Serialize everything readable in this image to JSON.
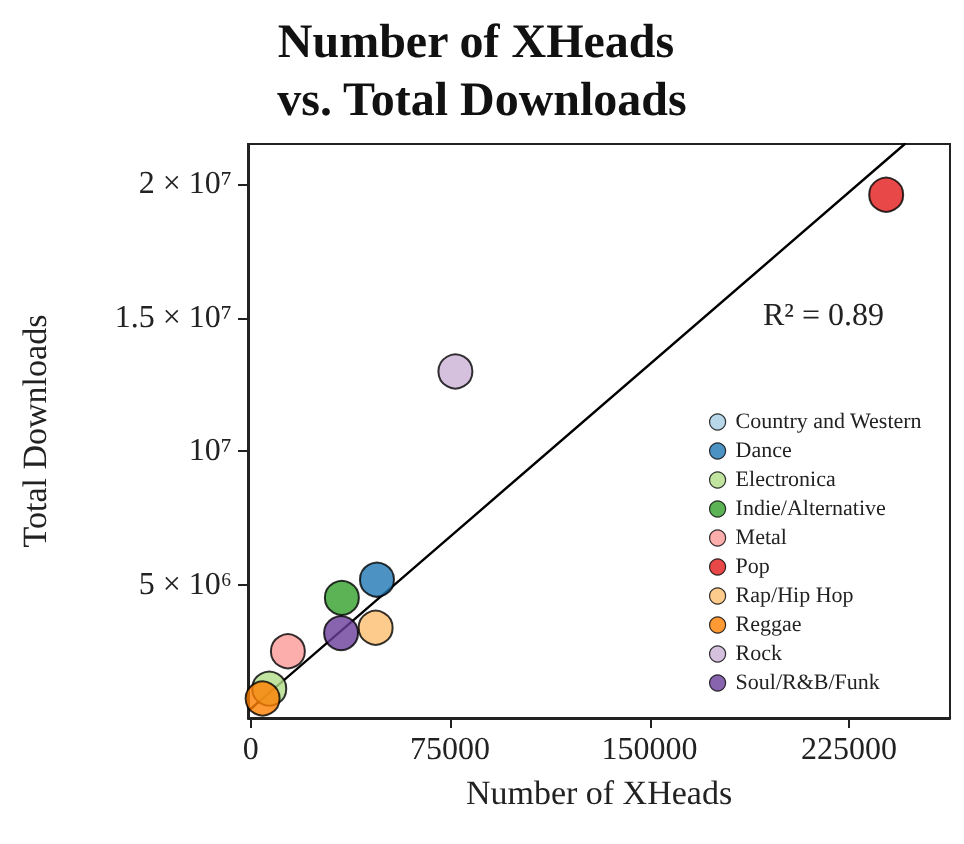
{
  "chart_data": {
    "type": "scatter",
    "title": "Number of XHeads vs. Total Downloads",
    "xlabel": "Number of XHeads",
    "ylabel": "Total Downloads",
    "annotations": [
      "R² = 0.89"
    ],
    "series": [
      {
        "name": "Country and Western",
        "color": "#a6cee3",
        "x": [
          null
        ],
        "values": [
          null
        ]
      },
      {
        "name": "Dance",
        "color": "#1f78b4",
        "x": [
          47500
        ],
        "values": [
          5180000
        ]
      },
      {
        "name": "Electronica",
        "color": "#b2df8a",
        "x": [
          7000
        ],
        "values": [
          1100000
        ]
      },
      {
        "name": "Indie/Alternative",
        "color": "#33a02c",
        "x": [
          34300
        ],
        "values": [
          4500000
        ]
      },
      {
        "name": "Metal",
        "color": "#fb9a99",
        "x": [
          14000
        ],
        "values": [
          2500000
        ]
      },
      {
        "name": "Pop",
        "color": "#e31a1c",
        "x": [
          239000
        ],
        "values": [
          19600000
        ]
      },
      {
        "name": "Rap/Hip Hop",
        "color": "#fdbf6f",
        "x": [
          47000
        ],
        "values": [
          3380000
        ]
      },
      {
        "name": "Reggae",
        "color": "#ff7f00",
        "x": [
          4500
        ],
        "values": [
          730000
        ]
      },
      {
        "name": "Rock",
        "color": "#cab2d6",
        "x": [
          77000
        ],
        "values": [
          12980000
        ]
      },
      {
        "name": "Soul/R&B/Funk",
        "color": "#6a3d9a",
        "x": [
          34000
        ],
        "values": [
          3180000
        ]
      },
      {
        "type": "line",
        "color": "#000000",
        "marker": "none",
        "x": [
          0,
          246000
        ],
        "values": [
          340000,
          21500000
        ]
      }
    ],
    "xlim": [
      -1000,
      263000
    ],
    "xticks": [
      0,
      75000,
      150000,
      225000
    ],
    "ylim": [
      0,
      21500000
    ],
    "yticks": [
      {
        "value": 5000000,
        "label": "5 × 10⁶"
      },
      {
        "value": 10000000,
        "label": "10⁷"
      },
      {
        "value": 15000000,
        "label": "1.5 × 10⁷"
      },
      {
        "value": 20000000,
        "label": "2 × 10⁷"
      }
    ],
    "grid": false,
    "legend": "bottom right",
    "marker": "circle"
  }
}
